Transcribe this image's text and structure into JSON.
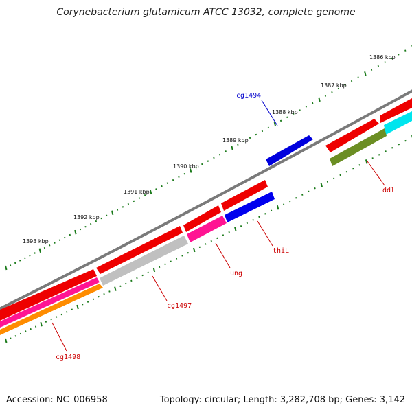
{
  "title": "Corynebacterium glutamicum ATCC 13032, complete genome",
  "footer": {
    "accession": "Accession: NC_006958",
    "summary": "Topology: circular; Length: 3,282,708 bp; Genes: 3,142"
  },
  "colors": {
    "backbone": "#7a7a7a",
    "ticks": "#1a7a1a",
    "label_red": "#cc0000",
    "label_blue": "#0000cc"
  },
  "kbp_labels": [
    "1386 kbp",
    "1387 kbp",
    "1388 kbp",
    "1389 kbp",
    "1390 kbp",
    "1391 kbp",
    "1392 kbp",
    "1393 kbp"
  ],
  "genes": [
    {
      "label": "cg1494",
      "color": "#0000dd",
      "label_color": "#0000cc"
    },
    {
      "label": "ddl",
      "color": "#6b8e23",
      "label_color": "#cc0000"
    },
    {
      "label": "thiL",
      "color": "#0000ee",
      "label_color": "#cc0000"
    },
    {
      "label": "ung",
      "color": "#ff1493",
      "label_color": "#cc0000"
    },
    {
      "label": "cg1497",
      "color": "#c0c0c0",
      "label_color": "#cc0000"
    },
    {
      "label": "cg1498",
      "color": "#ff8c00",
      "label_color": "#cc0000"
    }
  ],
  "features": {
    "red": "#ee0000",
    "cyan": "#00e5ee",
    "pink": "#ff1493",
    "orange": "#ff8c00",
    "silver": "#c0c0c0",
    "olive": "#6b8e23",
    "blue": "#0000ee"
  }
}
